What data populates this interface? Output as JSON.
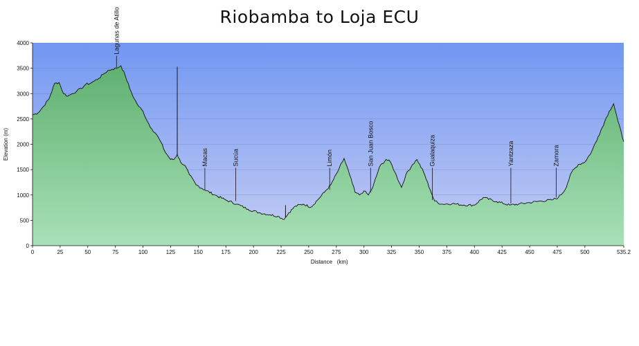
{
  "chart_data": {
    "type": "area",
    "title": "Riobamba to Loja ECU",
    "xlabel": "Distance   (km)",
    "ylabel": "Elevation (m)",
    "xlim": [
      0,
      535.2
    ],
    "ylim": [
      0,
      4000
    ],
    "xticks": [
      "0",
      "25",
      "50",
      "75",
      "100",
      "125",
      "150",
      "175",
      "200",
      "225",
      "250",
      "275",
      "300",
      "325",
      "350",
      "375",
      "400",
      "425",
      "450",
      "475",
      "500",
      "535.2"
    ],
    "yticks": [
      "0",
      "500",
      "1000",
      "1500",
      "2000",
      "2500",
      "3000",
      "3500",
      "4000"
    ],
    "grid": true,
    "colors": {
      "sky_top": "#7197f2",
      "sky_bottom": "#c6cdf4",
      "terrain_top": "#5fb070",
      "terrain_bottom": "#a8e1b8",
      "line": "#111111"
    },
    "series": [
      {
        "x": [
          0,
          5,
          10,
          15,
          20,
          24,
          28,
          32,
          36,
          40,
          44,
          48,
          52,
          56,
          60,
          64,
          68,
          72,
          76,
          80,
          84,
          88,
          92,
          96,
          100,
          104,
          108,
          112,
          116,
          120,
          125,
          128,
          131,
          134,
          138,
          142,
          148,
          156,
          165,
          175,
          185,
          195,
          205,
          215,
          222,
          228,
          232,
          238,
          245,
          252,
          258,
          264,
          270,
          276,
          282,
          287,
          292,
          296,
          300,
          304,
          308,
          314,
          320,
          324,
          328,
          334,
          338,
          344,
          348,
          354,
          360,
          364,
          370,
          380,
          390,
          400,
          408,
          420,
          432,
          440,
          450,
          460,
          470,
          476,
          482,
          488,
          494,
          500,
          506,
          512,
          518,
          522,
          526,
          530,
          535.2
        ],
        "y": [
          2580,
          2620,
          2750,
          2900,
          3200,
          3220,
          3000,
          2950,
          3000,
          3050,
          3100,
          3180,
          3200,
          3250,
          3300,
          3380,
          3450,
          3480,
          3500,
          3550,
          3350,
          3100,
          2900,
          2750,
          2650,
          2450,
          2300,
          2200,
          2050,
          1850,
          1700,
          1700,
          1800,
          1650,
          1580,
          1400,
          1200,
          1100,
          1000,
          900,
          820,
          720,
          650,
          610,
          580,
          520,
          650,
          780,
          820,
          760,
          900,
          1050,
          1200,
          1450,
          1720,
          1400,
          1050,
          1000,
          1080,
          1000,
          1150,
          1550,
          1700,
          1650,
          1450,
          1150,
          1400,
          1600,
          1700,
          1450,
          1100,
          880,
          820,
          830,
          800,
          800,
          950,
          870,
          800,
          820,
          850,
          880,
          900,
          950,
          1100,
          1450,
          1600,
          1650,
          1850,
          2150,
          2450,
          2650,
          2800,
          2450,
          2050
        ]
      }
    ],
    "spikes": [
      {
        "x": 131,
        "y": 3530
      },
      {
        "x": 229,
        "y": 800
      }
    ],
    "annotations": [
      {
        "label": "Lagunas de Atillo",
        "x": 76,
        "y": 3500
      },
      {
        "label": "Macas",
        "x": 156,
        "y": 1100
      },
      {
        "label": "Sucúa",
        "x": 184,
        "y": 880
      },
      {
        "label": "Limón",
        "x": 269,
        "y": 1100
      },
      {
        "label": "San Juan Bosco",
        "x": 306,
        "y": 1050
      },
      {
        "label": "Gualaquiza",
        "x": 362,
        "y": 900
      },
      {
        "label": "Yantzaza",
        "x": 433,
        "y": 830
      },
      {
        "label": "Zamora",
        "x": 474,
        "y": 950
      }
    ]
  }
}
